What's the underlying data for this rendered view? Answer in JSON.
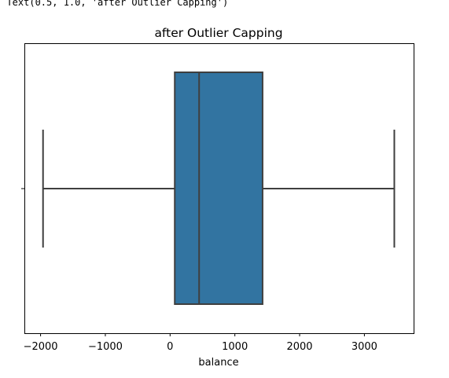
{
  "console": {
    "output_text": ": Text(0.5, 1.0, 'after Outlier Capping')"
  },
  "chart_data": {
    "type": "boxplot",
    "title": "after Outlier Capping",
    "xlabel": "balance",
    "ylabel": "",
    "orientation": "horizontal",
    "xlim": [
      -2250,
      3760
    ],
    "x_ticks": [
      -2000,
      -1000,
      0,
      1000,
      2000,
      3000
    ],
    "x_tick_labels": [
      "−2000",
      "−1000",
      "0",
      "1000",
      "2000",
      "3000"
    ],
    "grid": false,
    "box": {
      "whisker_low": -1962,
      "q1": 72,
      "median": 448,
      "q3": 1428,
      "whisker_high": 3462
    },
    "colors": {
      "box_fill": "#3274a1",
      "line": "#3f3f3f",
      "axes": "#000000"
    }
  }
}
